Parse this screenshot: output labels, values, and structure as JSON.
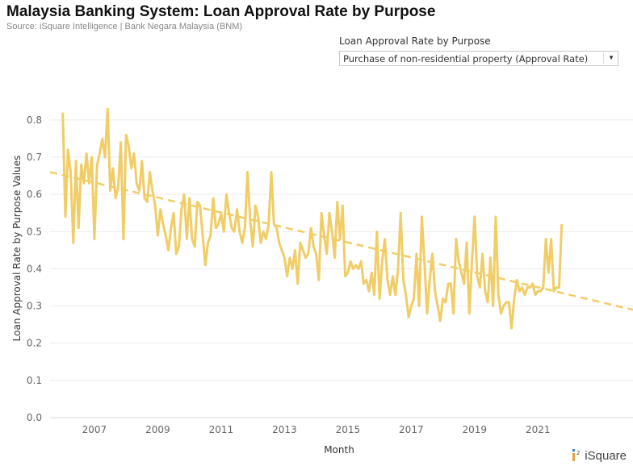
{
  "header": {
    "title": "Malaysia Banking System: Loan Approval Rate by Purpose",
    "source": "Source: iSquare Intelligence | Bank Negara Malaysia (BNM)"
  },
  "filter": {
    "label": "Loan Approval Rate by Purpose",
    "selected": "Purchase of non-residential property (Approval Rate)"
  },
  "brand": {
    "name": "iSquare"
  },
  "colors": {
    "series": "#F0CD67",
    "trend": "#F0CD67",
    "grid": "#EBEBEB"
  },
  "chart_data": {
    "type": "line",
    "title": "Malaysia Banking System: Loan Approval Rate by Purpose",
    "xlabel": "Month",
    "ylabel": "Loan Approval Rate by Purpose Values",
    "x_range": [
      2005.6,
      2024.0
    ],
    "ylim": [
      0.0,
      0.88
    ],
    "y_ticks": [
      0.0,
      0.1,
      0.2,
      0.3,
      0.4,
      0.5,
      0.6,
      0.7,
      0.8
    ],
    "y_tick_labels": [
      "0.0",
      "0.1",
      "0.2",
      "0.3",
      "0.4",
      "0.5",
      "0.6",
      "0.7",
      "0.8"
    ],
    "x_ticks": [
      2007,
      2009,
      2011,
      2013,
      2015,
      2017,
      2019,
      2021
    ],
    "x_tick_labels": [
      "2007",
      "2009",
      "2011",
      "2013",
      "2015",
      "2017",
      "2019",
      "2021"
    ],
    "grid": true,
    "series": [
      {
        "name": "Purchase of non-residential property (Approval Rate)",
        "start": 2006.0,
        "step_months": 1,
        "values": [
          0.82,
          0.54,
          0.72,
          0.66,
          0.47,
          0.69,
          0.51,
          0.68,
          0.63,
          0.71,
          0.63,
          0.7,
          0.48,
          0.68,
          0.71,
          0.75,
          0.7,
          0.83,
          0.61,
          0.67,
          0.59,
          0.62,
          0.74,
          0.48,
          0.76,
          0.73,
          0.67,
          0.71,
          0.63,
          0.61,
          0.69,
          0.59,
          0.58,
          0.66,
          0.61,
          0.57,
          0.49,
          0.56,
          0.52,
          0.49,
          0.45,
          0.51,
          0.55,
          0.44,
          0.46,
          0.56,
          0.6,
          0.48,
          0.59,
          0.48,
          0.46,
          0.58,
          0.57,
          0.49,
          0.41,
          0.47,
          0.49,
          0.59,
          0.51,
          0.52,
          0.55,
          0.5,
          0.6,
          0.55,
          0.51,
          0.5,
          0.56,
          0.5,
          0.47,
          0.51,
          0.66,
          0.53,
          0.46,
          0.57,
          0.54,
          0.47,
          0.5,
          0.48,
          0.52,
          0.66,
          0.52,
          0.51,
          0.47,
          0.45,
          0.43,
          0.38,
          0.43,
          0.4,
          0.45,
          0.36,
          0.47,
          0.45,
          0.43,
          0.44,
          0.51,
          0.46,
          0.44,
          0.37,
          0.55,
          0.49,
          0.44,
          0.55,
          0.5,
          0.43,
          0.58,
          0.48,
          0.57,
          0.38,
          0.39,
          0.42,
          0.4,
          0.41,
          0.4,
          0.42,
          0.36,
          0.37,
          0.34,
          0.39,
          0.33,
          0.5,
          0.32,
          0.42,
          0.48,
          0.37,
          0.33,
          0.38,
          0.33,
          0.4,
          0.55,
          0.37,
          0.33,
          0.27,
          0.3,
          0.32,
          0.44,
          0.3,
          0.54,
          0.42,
          0.28,
          0.37,
          0.44,
          0.34,
          0.3,
          0.26,
          0.32,
          0.31,
          0.36,
          0.36,
          0.28,
          0.48,
          0.42,
          0.39,
          0.36,
          0.47,
          0.28,
          0.42,
          0.54,
          0.38,
          0.35,
          0.44,
          0.34,
          0.31,
          0.43,
          0.3,
          0.54,
          0.33,
          0.28,
          0.3,
          0.31,
          0.31,
          0.24,
          0.32,
          0.37,
          0.34,
          0.35,
          0.33,
          0.35,
          0.35,
          0.36,
          0.33,
          0.34,
          0.34,
          0.35,
          0.48,
          0.39,
          0.48,
          0.34,
          0.35,
          0.35,
          0.52
        ]
      }
    ],
    "trend": {
      "name": "Trend line",
      "x": [
        2005.6,
        2024.0
      ],
      "y": [
        0.66,
        0.29
      ]
    }
  }
}
